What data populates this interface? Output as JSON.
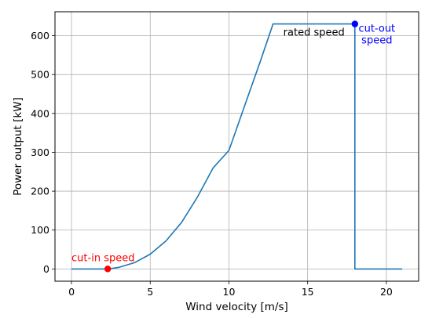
{
  "chart_data": {
    "type": "line",
    "title": "",
    "xlabel": "Wind velocity [m/s]",
    "ylabel": "Power output [kW]",
    "xlim": [
      -1.05,
      22.05
    ],
    "ylim": [
      -31.5,
      661.5
    ],
    "xticks": [
      0,
      5,
      10,
      15,
      20
    ],
    "yticks": [
      0,
      100,
      200,
      300,
      400,
      500,
      600
    ],
    "grid": true,
    "legend": "none",
    "colors": {
      "line": "#1f77b4",
      "cut_in": "#ff0000",
      "cut_out": "#0000ff",
      "grid": "#b0b0b0"
    },
    "series": [
      {
        "x": [
          0,
          2.3,
          3,
          4,
          5,
          6,
          7,
          8,
          9,
          10,
          11,
          12,
          12.8,
          18,
          18,
          21
        ],
        "y": [
          0,
          0,
          4,
          16,
          38,
          72,
          120,
          185,
          260,
          305,
          420,
          535,
          630,
          630,
          0,
          0
        ]
      }
    ],
    "markers": [
      {
        "name": "cut-in",
        "x": 2.3,
        "y": 0
      },
      {
        "name": "cut-out",
        "x": 18,
        "y": 630
      }
    ],
    "annotations": [
      {
        "name": "cut-in",
        "text": "cut-in speed"
      },
      {
        "name": "rated",
        "text": "rated speed"
      },
      {
        "name": "cut-out",
        "lines": [
          "cut-out",
          "speed"
        ]
      }
    ]
  }
}
